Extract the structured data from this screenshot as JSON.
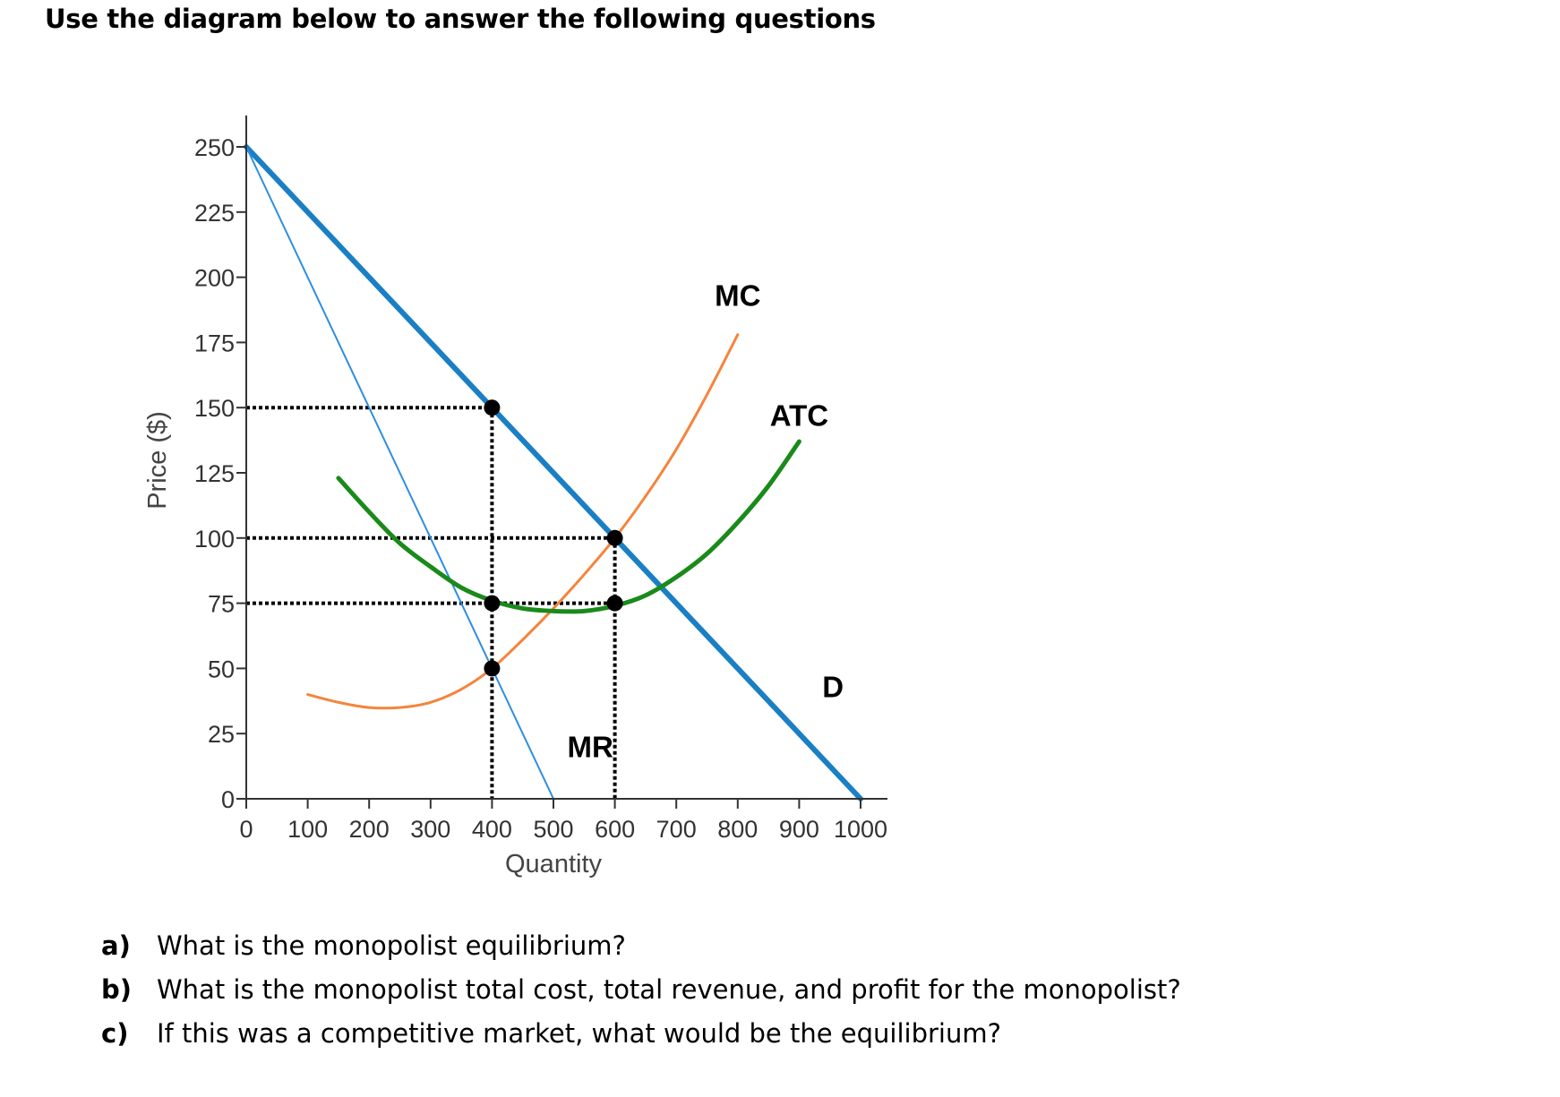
{
  "heading": "Use the diagram below to answer the following questions",
  "chart_data": {
    "type": "line",
    "title": "",
    "xlabel": "Quantity",
    "ylabel": "Price ($)",
    "xlim": [
      0,
      1000
    ],
    "ylim": [
      0,
      250
    ],
    "x_ticks": [
      0,
      100,
      200,
      300,
      400,
      500,
      600,
      700,
      800,
      900,
      1000
    ],
    "y_ticks": [
      0,
      25,
      50,
      75,
      100,
      125,
      150,
      175,
      200,
      225,
      250
    ],
    "grid": false,
    "series": [
      {
        "name": "D",
        "color": "#1a7fc4",
        "x": [
          0,
          1000
        ],
        "y": [
          250,
          0
        ]
      },
      {
        "name": "MR",
        "color": "#2f8ee0",
        "x": [
          0,
          500
        ],
        "y": [
          250,
          0
        ]
      },
      {
        "name": "MC",
        "color": "#f5843c",
        "x": [
          100,
          150,
          200,
          250,
          300,
          350,
          400,
          450,
          500,
          550,
          600,
          650,
          700,
          750,
          800
        ],
        "y": [
          40,
          37,
          35,
          35,
          37,
          42,
          50,
          61,
          73,
          86,
          100,
          116,
          134,
          155,
          178
        ]
      },
      {
        "name": "ATC",
        "color": "#1a8a1a",
        "x": [
          150,
          200,
          250,
          300,
          350,
          400,
          450,
          500,
          550,
          600,
          650,
          700,
          750,
          800,
          850,
          900
        ],
        "y": [
          123,
          110,
          98,
          89,
          81,
          76,
          73,
          72,
          72,
          74,
          78,
          85,
          94,
          106,
          120,
          137
        ]
      }
    ],
    "points": [
      {
        "x": 400,
        "y": 150
      },
      {
        "x": 400,
        "y": 75
      },
      {
        "x": 400,
        "y": 50
      },
      {
        "x": 600,
        "y": 100
      },
      {
        "x": 600,
        "y": 75
      }
    ],
    "guides_horizontal": [
      {
        "y": 150,
        "to_x": 400
      },
      {
        "y": 100,
        "to_x": 600
      },
      {
        "y": 75,
        "to_x": 600
      }
    ],
    "guides_vertical": [
      {
        "x": 400,
        "from_y": 150
      },
      {
        "x": 600,
        "from_y": 100
      }
    ]
  },
  "questions": [
    {
      "marker": "a)",
      "text": "What is the monopolist equilibrium?"
    },
    {
      "marker": "b)",
      "text": "What is the monopolist total cost, total revenue, and profit for the monopolist?"
    },
    {
      "marker": "c)",
      "text": "If this was a competitive market, what would be the equilibrium?"
    }
  ],
  "colors": {
    "dot": "#000000",
    "guide": "#000000",
    "axis": "#333333"
  }
}
